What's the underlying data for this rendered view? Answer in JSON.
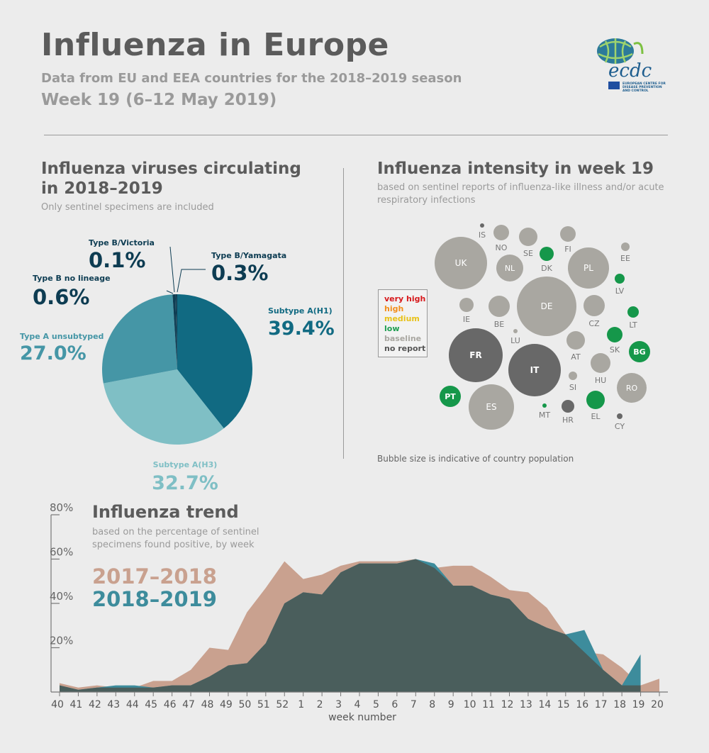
{
  "header": {
    "title": "Influenza in Europe",
    "subtitle": "Data from EU and EEA countries for the 2018–2019 season",
    "week": "Week 19 (6–12 May 2019)"
  },
  "logo": {
    "icon": "ecdc-globe-logo",
    "wordmark": "ecdc",
    "tagline": [
      "EUROPEAN CENTRE FOR",
      "DISEASE PREVENTION",
      "AND CONTROL"
    ]
  },
  "pie_section": {
    "title_line1": "Influenza viruses circulating",
    "title_line2": "in 2018–2019",
    "subtitle": "Only sentinel specimens are included"
  },
  "map_section": {
    "title": "Influenza intensity in week 19",
    "subtitle": "based on sentinel reports of influenza-like illness and/or acute respiratory infections",
    "note": "Bubble size is indicative of country population",
    "legend": [
      {
        "label": "very high",
        "color": "#d7191c"
      },
      {
        "label": "high",
        "color": "#f28e1c"
      },
      {
        "label": "medium",
        "color": "#e8c21a"
      },
      {
        "label": "low",
        "color": "#1e9e50"
      },
      {
        "label": "baseline",
        "color": "#a9a7a1"
      },
      {
        "label": "no report",
        "color": "#555555"
      }
    ]
  },
  "trend_section": {
    "title": "Influenza trend",
    "subtitle": "based on the percentage of sentinel specimens found positive, by week",
    "legend_2017": "2017–2018",
    "legend_2018": "2018–2019",
    "xlabel": "week number"
  },
  "chart_data": [
    {
      "type": "pie",
      "title": "Influenza viruses circulating in 2018–2019",
      "slices": [
        {
          "label": "Subtype A(H1)",
          "value": 39.4,
          "display": "39.4%",
          "color": "#116a82"
        },
        {
          "label": "Subtype A(H3)",
          "value": 32.7,
          "display": "32.7%",
          "color": "#7fbfc5"
        },
        {
          "label": "Type A unsubtyped",
          "value": 27.0,
          "display": "27.0%",
          "color": "#4596a6"
        },
        {
          "label": "Type B no lineage",
          "value": 0.6,
          "display": "0.6%",
          "color": "#0d3c52"
        },
        {
          "label": "Type B/Victoria",
          "value": 0.1,
          "display": "0.1%",
          "color": "#0d3c52"
        },
        {
          "label": "Type B/Yamagata",
          "value": 0.3,
          "display": "0.3%",
          "color": "#0d3c52"
        }
      ]
    },
    {
      "type": "scatter",
      "title": "Influenza intensity in week 19",
      "countries": [
        {
          "code": "IS",
          "level": "no report"
        },
        {
          "code": "NO",
          "level": "baseline"
        },
        {
          "code": "SE",
          "level": "baseline"
        },
        {
          "code": "FI",
          "level": "baseline"
        },
        {
          "code": "EE",
          "level": "baseline"
        },
        {
          "code": "UK",
          "level": "baseline"
        },
        {
          "code": "NL",
          "level": "baseline"
        },
        {
          "code": "DK",
          "level": "low"
        },
        {
          "code": "PL",
          "level": "baseline"
        },
        {
          "code": "LV",
          "level": "low"
        },
        {
          "code": "IE",
          "level": "baseline"
        },
        {
          "code": "BE",
          "level": "baseline"
        },
        {
          "code": "DE",
          "level": "baseline"
        },
        {
          "code": "CZ",
          "level": "baseline"
        },
        {
          "code": "LT",
          "level": "low"
        },
        {
          "code": "LU",
          "level": "baseline"
        },
        {
          "code": "FR",
          "level": "no report"
        },
        {
          "code": "AT",
          "level": "baseline"
        },
        {
          "code": "SK",
          "level": "low"
        },
        {
          "code": "BG",
          "level": "low"
        },
        {
          "code": "IT",
          "level": "no report"
        },
        {
          "code": "HU",
          "level": "baseline"
        },
        {
          "code": "SI",
          "level": "baseline"
        },
        {
          "code": "RO",
          "level": "baseline"
        },
        {
          "code": "PT",
          "level": "low"
        },
        {
          "code": "ES",
          "level": "baseline"
        },
        {
          "code": "MT",
          "level": "low"
        },
        {
          "code": "HR",
          "level": "no report"
        },
        {
          "code": "EL",
          "level": "low"
        },
        {
          "code": "CY",
          "level": "no report"
        }
      ]
    },
    {
      "type": "area",
      "title": "Influenza trend",
      "xlabel": "week number",
      "ylabel": "",
      "ylim": [
        0,
        80
      ],
      "yticks": [
        "20%",
        "40%",
        "60%",
        "80%"
      ],
      "categories": [
        "40",
        "41",
        "42",
        "43",
        "44",
        "45",
        "46",
        "47",
        "48",
        "49",
        "50",
        "51",
        "52",
        "1",
        "2",
        "3",
        "4",
        "5",
        "6",
        "7",
        "8",
        "9",
        "10",
        "11",
        "12",
        "13",
        "14",
        "15",
        "16",
        "17",
        "18",
        "19",
        "20"
      ],
      "series": [
        {
          "name": "2017–2018",
          "color": "#c9a18f",
          "values": [
            4,
            2,
            3,
            2,
            2,
            5,
            5,
            10,
            20,
            19,
            36,
            47,
            59,
            51,
            53,
            57,
            59,
            59,
            59,
            60,
            56,
            57,
            57,
            52,
            46,
            45,
            38,
            26,
            18,
            17,
            11,
            3,
            6
          ]
        },
        {
          "name": "2018–2019",
          "color": "#3d8c9c",
          "values": [
            3,
            1,
            2,
            3,
            3,
            2,
            3,
            3,
            7,
            12,
            13,
            22,
            40,
            45,
            44,
            54,
            58,
            58,
            58,
            60,
            58,
            48,
            48,
            44,
            42,
            33,
            29,
            26,
            28,
            10,
            3,
            17,
            null
          ]
        }
      ]
    }
  ]
}
